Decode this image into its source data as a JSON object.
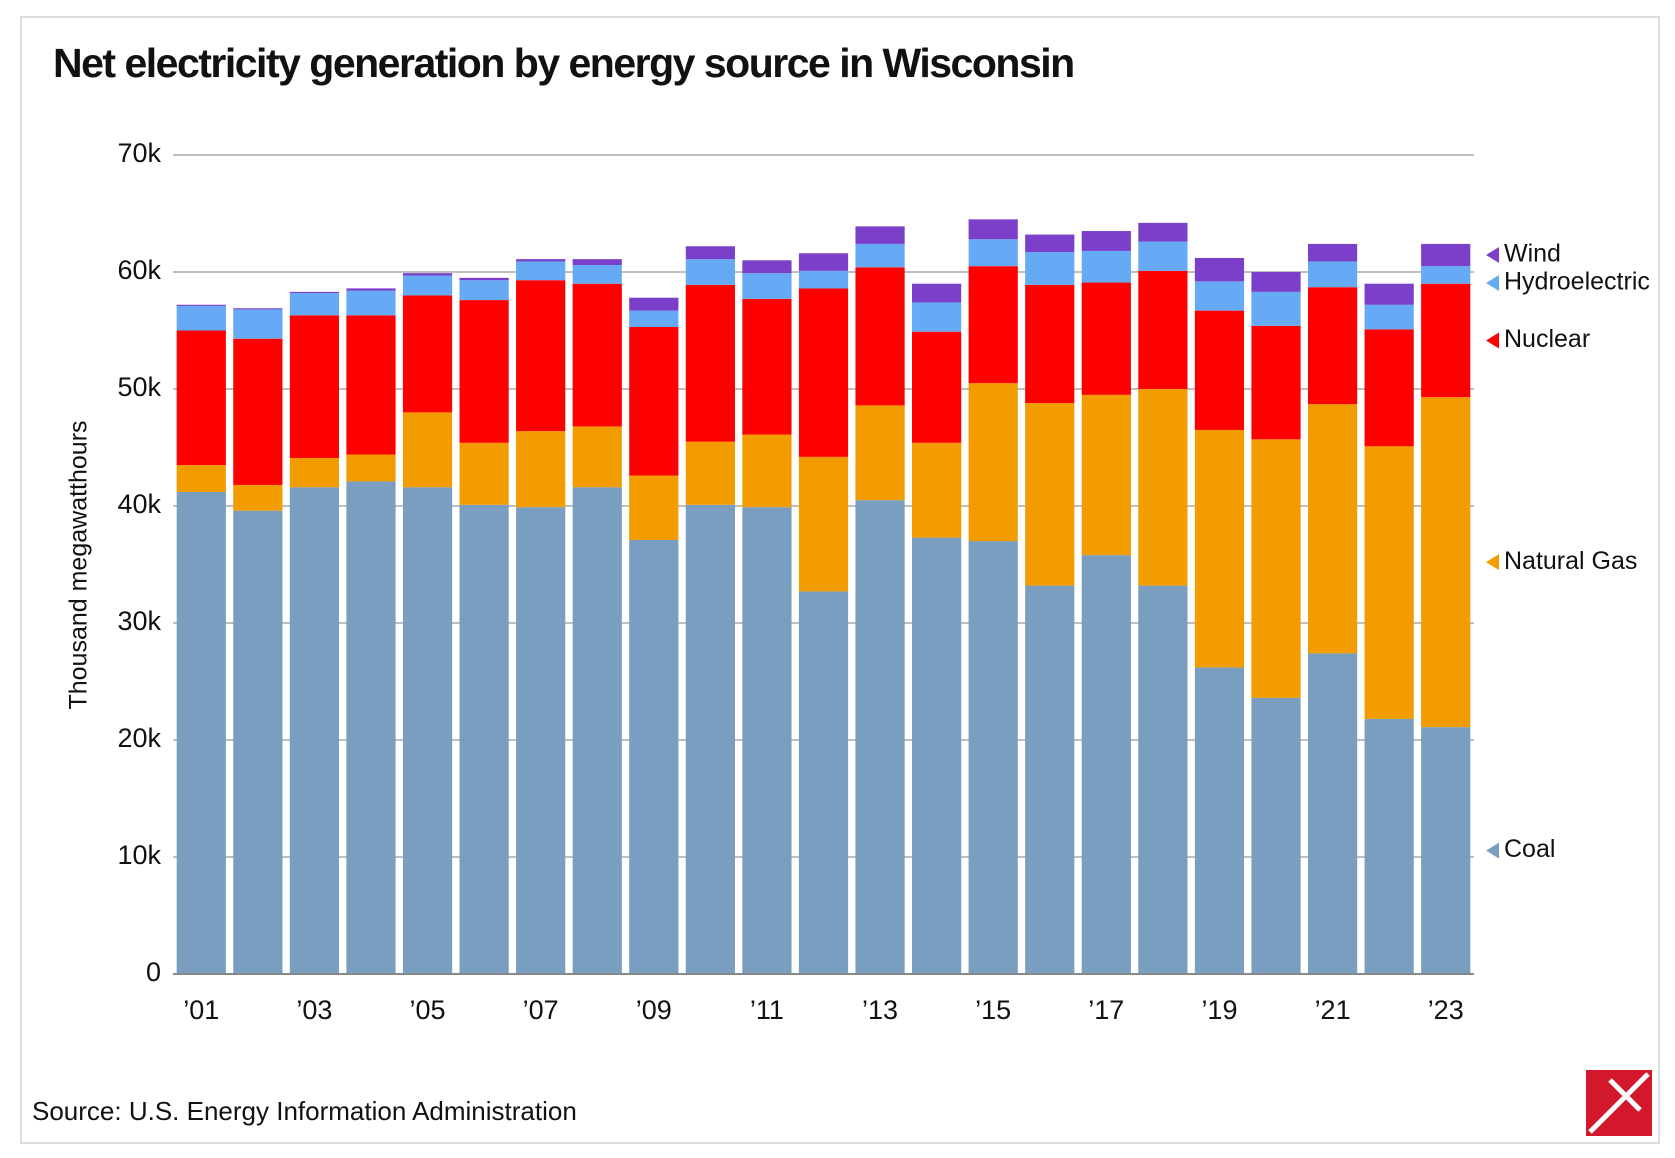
{
  "chart_data": {
    "type": "stacked-bar",
    "title": "Net electricity generation by energy source in Wisconsin",
    "y_label": "Thousand megawatthours",
    "source": "Source: U.S. Energy Information Administration",
    "categories": [
      "’01",
      null,
      "’03",
      null,
      "’05",
      null,
      "’07",
      null,
      "’09",
      null,
      "’11",
      null,
      "’13",
      null,
      "’15",
      null,
      "’17",
      null,
      "’19",
      null,
      "’21",
      null,
      "’23"
    ],
    "series": [
      {
        "name": "Coal",
        "color": "#7a9ebf",
        "values": [
          41200,
          39600,
          41600,
          42100,
          41600,
          40100,
          39900,
          41600,
          37100,
          40100,
          39900,
          32700,
          40500,
          37300,
          37000,
          33200,
          35800,
          33200,
          26200,
          23600,
          27400,
          21800,
          21100
        ]
      },
      {
        "name": "Natural Gas",
        "color": "#f39c00",
        "values": [
          2300,
          2200,
          2500,
          2300,
          6400,
          5300,
          6500,
          5200,
          5500,
          5400,
          6200,
          11500,
          8100,
          8100,
          13500,
          15600,
          13700,
          16800,
          20300,
          22100,
          21300,
          23300,
          28200
        ]
      },
      {
        "name": "Nuclear",
        "color": "#ff0000",
        "values": [
          11500,
          12500,
          12200,
          11900,
          10000,
          12200,
          12900,
          12200,
          12700,
          13400,
          11600,
          14400,
          11800,
          9500,
          10000,
          10100,
          9600,
          10100,
          10200,
          9700,
          10000,
          10000,
          9700
        ]
      },
      {
        "name": "Hydroelectric",
        "color": "#66aaf5",
        "values": [
          2100,
          2500,
          1900,
          2100,
          1700,
          1700,
          1600,
          1600,
          1400,
          2200,
          2200,
          1500,
          2000,
          2500,
          2300,
          2800,
          2700,
          2500,
          2500,
          2900,
          2200,
          2100,
          1500
        ]
      },
      {
        "name": "Wind",
        "color": "#7b3fc9",
        "values": [
          100,
          100,
          100,
          200,
          200,
          200,
          200,
          500,
          1100,
          1100,
          1100,
          1500,
          1500,
          1600,
          1700,
          1500,
          1700,
          1600,
          2000,
          1700,
          1500,
          1800,
          1900
        ]
      }
    ],
    "ylim": [
      0,
      70000
    ],
    "yticks": [
      0,
      {
        "value": 10000,
        "label": "10k"
      },
      {
        "value": 20000,
        "label": "20k"
      },
      {
        "value": 30000,
        "label": "30k"
      },
      {
        "value": 40000,
        "label": "40k"
      },
      {
        "value": 50000,
        "label": "50k"
      },
      {
        "value": 60000,
        "label": "60k"
      },
      {
        "value": 70000,
        "label": "70k"
      }
    ],
    "grid": true
  }
}
